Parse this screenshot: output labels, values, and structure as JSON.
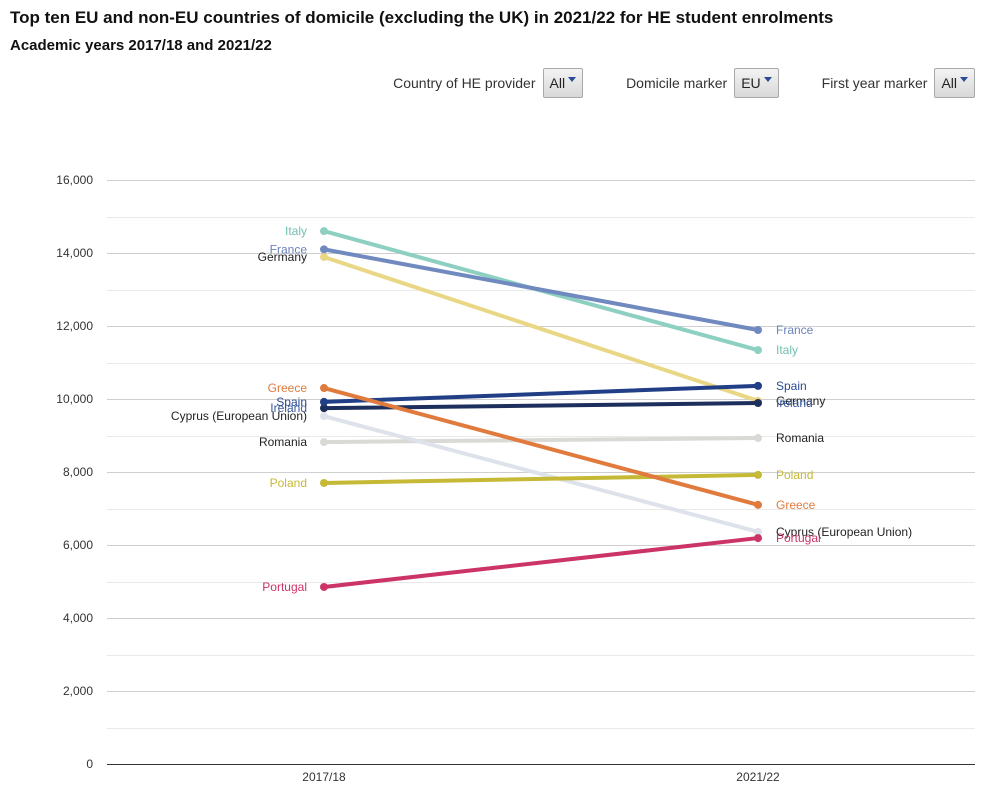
{
  "title": "Top ten EU and non-EU countries of domicile (excluding the UK) in 2021/22 for HE student enrolments",
  "subtitle": "Academic years 2017/18 and 2021/22",
  "filters": [
    {
      "label": "Country of HE provider",
      "value": "All"
    },
    {
      "label": "Domicile marker",
      "value": "EU"
    },
    {
      "label": "First year marker",
      "value": "All"
    }
  ],
  "chart_data": {
    "type": "line",
    "categories": [
      "2017/18",
      "2021/22"
    ],
    "ylim": [
      0,
      16000
    ],
    "grid": true,
    "minor_grid_step": 1000,
    "yticks": [
      {
        "value": 0,
        "label": "0"
      },
      {
        "value": 2000,
        "label": "2,000"
      },
      {
        "value": 4000,
        "label": "4,000"
      },
      {
        "value": 6000,
        "label": "6,000"
      },
      {
        "value": 8000,
        "label": "8,000"
      },
      {
        "value": 10000,
        "label": "10,000"
      },
      {
        "value": 12000,
        "label": "12,000"
      },
      {
        "value": 14000,
        "label": "14,000"
      },
      {
        "value": 16000,
        "label": "16,000"
      }
    ],
    "series": [
      {
        "name": "Romania",
        "values": [
          8820,
          8930
        ],
        "color": "#d9d9d5",
        "label_color": "#222222"
      },
      {
        "name": "Cyprus (European Union)",
        "values": [
          9530,
          6360
        ],
        "color": "#dee3eb",
        "label_color": "#222222"
      },
      {
        "name": "Germany",
        "values": [
          13890,
          9950
        ],
        "color": "#ead786",
        "label_color": "#222222"
      },
      {
        "name": "Italy",
        "values": [
          14600,
          11340
        ],
        "color": "#8dd0c1",
        "label_color": "#72c0b0"
      },
      {
        "name": "France",
        "values": [
          14100,
          11890
        ],
        "color": "#7089bf",
        "label_color": "#6a83ba"
      },
      {
        "name": "Poland",
        "values": [
          7700,
          7920
        ],
        "color": "#c5b935",
        "label_color": "#c5b935"
      },
      {
        "name": "Ireland",
        "values": [
          9750,
          9890
        ],
        "color": "#1d2f5c",
        "label_color": "#3b5b9e"
      },
      {
        "name": "Spain",
        "values": [
          9920,
          10360
        ],
        "color": "#213f86",
        "label_color": "#2c4b94"
      },
      {
        "name": "Greece",
        "values": [
          10300,
          7100
        ],
        "color": "#e07b3d",
        "label_color": "#e07b3d"
      },
      {
        "name": "Portugal",
        "values": [
          4850,
          6190
        ],
        "color": "#cc3467",
        "label_color": "#cc3467"
      }
    ]
  }
}
